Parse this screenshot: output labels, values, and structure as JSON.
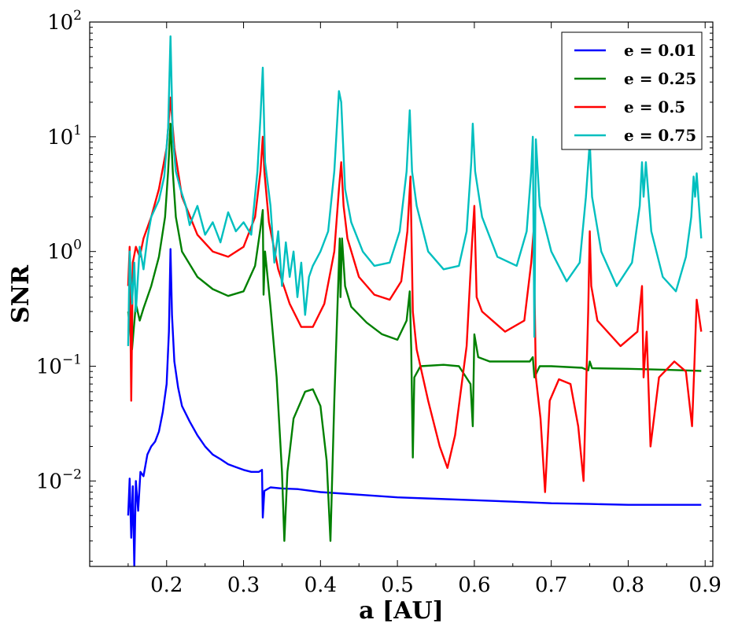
{
  "chart_data": {
    "type": "line",
    "title": "",
    "xlabel": "a [AU]",
    "ylabel": "SNR",
    "xscale": "linear",
    "yscale": "log",
    "xlim": [
      0.1,
      0.91
    ],
    "ylim": [
      0.0018,
      100
    ],
    "x_ticks": [
      {
        "value": 0.2,
        "label": "0.2"
      },
      {
        "value": 0.3,
        "label": "0.3"
      },
      {
        "value": 0.4,
        "label": "0.4"
      },
      {
        "value": 0.5,
        "label": "0.5"
      },
      {
        "value": 0.6,
        "label": "0.6"
      },
      {
        "value": 0.7,
        "label": "0.7"
      },
      {
        "value": 0.8,
        "label": "0.8"
      },
      {
        "value": 0.9,
        "label": "0.9"
      }
    ],
    "y_ticks": [
      {
        "value": 0.01,
        "base": "10",
        "exp": "−2"
      },
      {
        "value": 0.1,
        "base": "10",
        "exp": "−1"
      },
      {
        "value": 1,
        "base": "10",
        "exp": "0"
      },
      {
        "value": 10,
        "base": "10",
        "exp": "1"
      },
      {
        "value": 100,
        "base": "10",
        "exp": "2"
      }
    ],
    "legend_position": "top-right",
    "series": [
      {
        "name": "e = 0.01",
        "color": "#0000ff",
        "points": [
          [
            0.15,
            0.005
          ],
          [
            0.152,
            0.0105
          ],
          [
            0.154,
            0.0032
          ],
          [
            0.156,
            0.009
          ],
          [
            0.158,
            0.0018
          ],
          [
            0.16,
            0.01
          ],
          [
            0.163,
            0.0055
          ],
          [
            0.166,
            0.012
          ],
          [
            0.17,
            0.011
          ],
          [
            0.175,
            0.017
          ],
          [
            0.18,
            0.02
          ],
          [
            0.185,
            0.022
          ],
          [
            0.19,
            0.027
          ],
          [
            0.195,
            0.04
          ],
          [
            0.2,
            0.07
          ],
          [
            0.203,
            0.2
          ],
          [
            0.205,
            1.05
          ],
          [
            0.207,
            0.28
          ],
          [
            0.21,
            0.11
          ],
          [
            0.215,
            0.065
          ],
          [
            0.22,
            0.045
          ],
          [
            0.23,
            0.033
          ],
          [
            0.24,
            0.025
          ],
          [
            0.25,
            0.02
          ],
          [
            0.26,
            0.017
          ],
          [
            0.27,
            0.0155
          ],
          [
            0.28,
            0.014
          ],
          [
            0.29,
            0.0132
          ],
          [
            0.3,
            0.0125
          ],
          [
            0.31,
            0.012
          ],
          [
            0.32,
            0.012
          ],
          [
            0.324,
            0.0125
          ],
          [
            0.325,
            0.0048
          ],
          [
            0.327,
            0.0082
          ],
          [
            0.335,
            0.0088
          ],
          [
            0.35,
            0.0086
          ],
          [
            0.37,
            0.0085
          ],
          [
            0.4,
            0.008
          ],
          [
            0.45,
            0.0076
          ],
          [
            0.5,
            0.0072
          ],
          [
            0.55,
            0.007
          ],
          [
            0.6,
            0.0068
          ],
          [
            0.65,
            0.0066
          ],
          [
            0.7,
            0.0064
          ],
          [
            0.75,
            0.0063
          ],
          [
            0.8,
            0.0062
          ],
          [
            0.85,
            0.0062
          ],
          [
            0.895,
            0.0062
          ]
        ]
      },
      {
        "name": "e = 0.25",
        "color": "#008000",
        "points": [
          [
            0.15,
            0.3
          ],
          [
            0.155,
            0.14
          ],
          [
            0.16,
            0.35
          ],
          [
            0.165,
            0.25
          ],
          [
            0.17,
            0.32
          ],
          [
            0.18,
            0.5
          ],
          [
            0.19,
            0.9
          ],
          [
            0.198,
            2.0
          ],
          [
            0.202,
            5.0
          ],
          [
            0.205,
            13
          ],
          [
            0.208,
            5.0
          ],
          [
            0.212,
            2.0
          ],
          [
            0.22,
            1.0
          ],
          [
            0.24,
            0.6
          ],
          [
            0.26,
            0.47
          ],
          [
            0.28,
            0.41
          ],
          [
            0.3,
            0.45
          ],
          [
            0.315,
            0.75
          ],
          [
            0.322,
            1.6
          ],
          [
            0.325,
            2.3
          ],
          [
            0.326,
            0.42
          ],
          [
            0.328,
            1.0
          ],
          [
            0.335,
            0.33
          ],
          [
            0.343,
            0.08
          ],
          [
            0.35,
            0.012
          ],
          [
            0.353,
            0.003
          ],
          [
            0.357,
            0.012
          ],
          [
            0.365,
            0.035
          ],
          [
            0.38,
            0.06
          ],
          [
            0.39,
            0.063
          ],
          [
            0.4,
            0.045
          ],
          [
            0.408,
            0.015
          ],
          [
            0.413,
            0.003
          ],
          [
            0.418,
            0.05
          ],
          [
            0.423,
            0.5
          ],
          [
            0.425,
            1.3
          ],
          [
            0.426,
            0.4
          ],
          [
            0.428,
            1.3
          ],
          [
            0.432,
            0.5
          ],
          [
            0.44,
            0.33
          ],
          [
            0.46,
            0.24
          ],
          [
            0.48,
            0.19
          ],
          [
            0.5,
            0.17
          ],
          [
            0.512,
            0.25
          ],
          [
            0.516,
            0.45
          ],
          [
            0.518,
            0.14
          ],
          [
            0.52,
            0.016
          ],
          [
            0.522,
            0.08
          ],
          [
            0.53,
            0.1
          ],
          [
            0.56,
            0.103
          ],
          [
            0.58,
            0.1
          ],
          [
            0.595,
            0.07
          ],
          [
            0.598,
            0.03
          ],
          [
            0.6,
            0.19
          ],
          [
            0.605,
            0.12
          ],
          [
            0.62,
            0.11
          ],
          [
            0.65,
            0.11
          ],
          [
            0.672,
            0.11
          ],
          [
            0.676,
            0.12
          ],
          [
            0.678,
            0.08
          ],
          [
            0.685,
            0.1
          ],
          [
            0.7,
            0.1
          ],
          [
            0.74,
            0.097
          ],
          [
            0.748,
            0.092
          ],
          [
            0.75,
            0.11
          ],
          [
            0.753,
            0.096
          ],
          [
            0.8,
            0.095
          ],
          [
            0.85,
            0.093
          ],
          [
            0.895,
            0.091
          ]
        ]
      },
      {
        "name": "e = 0.5",
        "color": "#ff0000",
        "points": [
          [
            0.15,
            0.5
          ],
          [
            0.152,
            1.1
          ],
          [
            0.154,
            0.05
          ],
          [
            0.156,
            0.8
          ],
          [
            0.16,
            1.1
          ],
          [
            0.165,
            0.9
          ],
          [
            0.17,
            1.3
          ],
          [
            0.18,
            2.0
          ],
          [
            0.19,
            3.5
          ],
          [
            0.2,
            8.0
          ],
          [
            0.205,
            22
          ],
          [
            0.21,
            8.0
          ],
          [
            0.22,
            3.0
          ],
          [
            0.24,
            1.4
          ],
          [
            0.26,
            1.0
          ],
          [
            0.28,
            0.9
          ],
          [
            0.3,
            1.1
          ],
          [
            0.315,
            2.0
          ],
          [
            0.322,
            5.0
          ],
          [
            0.325,
            10
          ],
          [
            0.327,
            5.0
          ],
          [
            0.333,
            1.8
          ],
          [
            0.345,
            0.7
          ],
          [
            0.36,
            0.35
          ],
          [
            0.375,
            0.22
          ],
          [
            0.39,
            0.22
          ],
          [
            0.405,
            0.35
          ],
          [
            0.418,
            1.0
          ],
          [
            0.424,
            3.5
          ],
          [
            0.427,
            6.0
          ],
          [
            0.43,
            2.5
          ],
          [
            0.435,
            1.3
          ],
          [
            0.45,
            0.6
          ],
          [
            0.47,
            0.42
          ],
          [
            0.49,
            0.38
          ],
          [
            0.505,
            0.55
          ],
          [
            0.513,
            1.5
          ],
          [
            0.517,
            4.5
          ],
          [
            0.52,
            0.3
          ],
          [
            0.525,
            0.14
          ],
          [
            0.54,
            0.05
          ],
          [
            0.555,
            0.02
          ],
          [
            0.565,
            0.013
          ],
          [
            0.575,
            0.025
          ],
          [
            0.59,
            0.15
          ],
          [
            0.597,
            1.2
          ],
          [
            0.6,
            2.5
          ],
          [
            0.603,
            0.4
          ],
          [
            0.61,
            0.3
          ],
          [
            0.64,
            0.2
          ],
          [
            0.665,
            0.25
          ],
          [
            0.674,
            0.8
          ],
          [
            0.677,
            1.5
          ],
          [
            0.68,
            0.08
          ],
          [
            0.686,
            0.035
          ],
          [
            0.692,
            0.008
          ],
          [
            0.698,
            0.05
          ],
          [
            0.71,
            0.077
          ],
          [
            0.725,
            0.07
          ],
          [
            0.735,
            0.03
          ],
          [
            0.742,
            0.01
          ],
          [
            0.748,
            0.3
          ],
          [
            0.75,
            1.5
          ],
          [
            0.752,
            0.5
          ],
          [
            0.76,
            0.25
          ],
          [
            0.79,
            0.15
          ],
          [
            0.812,
            0.2
          ],
          [
            0.818,
            0.5
          ],
          [
            0.82,
            0.08
          ],
          [
            0.824,
            0.2
          ],
          [
            0.829,
            0.02
          ],
          [
            0.84,
            0.08
          ],
          [
            0.86,
            0.11
          ],
          [
            0.875,
            0.09
          ],
          [
            0.883,
            0.03
          ],
          [
            0.886,
            0.1
          ],
          [
            0.889,
            0.38
          ],
          [
            0.895,
            0.2
          ]
        ]
      },
      {
        "name": "e = 0.75",
        "color": "#00bfbf",
        "points": [
          [
            0.15,
            0.15
          ],
          [
            0.152,
            1.0
          ],
          [
            0.155,
            0.35
          ],
          [
            0.158,
            0.8
          ],
          [
            0.16,
            0.3
          ],
          [
            0.165,
            1.1
          ],
          [
            0.17,
            0.7
          ],
          [
            0.175,
            1.3
          ],
          [
            0.18,
            2.0
          ],
          [
            0.19,
            2.8
          ],
          [
            0.197,
            4.5
          ],
          [
            0.202,
            12
          ],
          [
            0.205,
            75
          ],
          [
            0.208,
            10
          ],
          [
            0.212,
            5.0
          ],
          [
            0.218,
            3.5
          ],
          [
            0.225,
            2.5
          ],
          [
            0.23,
            1.7
          ],
          [
            0.24,
            2.5
          ],
          [
            0.25,
            1.4
          ],
          [
            0.26,
            1.8
          ],
          [
            0.27,
            1.2
          ],
          [
            0.28,
            2.2
          ],
          [
            0.29,
            1.5
          ],
          [
            0.3,
            1.8
          ],
          [
            0.31,
            1.4
          ],
          [
            0.318,
            5.0
          ],
          [
            0.322,
            15
          ],
          [
            0.325,
            40
          ],
          [
            0.328,
            6.0
          ],
          [
            0.335,
            2.5
          ],
          [
            0.34,
            0.8
          ],
          [
            0.345,
            1.5
          ],
          [
            0.35,
            0.5
          ],
          [
            0.355,
            1.2
          ],
          [
            0.36,
            0.6
          ],
          [
            0.365,
            1.0
          ],
          [
            0.37,
            0.4
          ],
          [
            0.375,
            0.8
          ],
          [
            0.38,
            0.28
          ],
          [
            0.385,
            0.6
          ],
          [
            0.39,
            0.75
          ],
          [
            0.4,
            1.0
          ],
          [
            0.41,
            1.5
          ],
          [
            0.418,
            5.0
          ],
          [
            0.424,
            25
          ],
          [
            0.427,
            20
          ],
          [
            0.432,
            3.5
          ],
          [
            0.44,
            1.8
          ],
          [
            0.455,
            1.0
          ],
          [
            0.47,
            0.75
          ],
          [
            0.49,
            0.8
          ],
          [
            0.503,
            1.5
          ],
          [
            0.512,
            5.0
          ],
          [
            0.516,
            17
          ],
          [
            0.519,
            5.0
          ],
          [
            0.525,
            2.5
          ],
          [
            0.54,
            1.0
          ],
          [
            0.56,
            0.7
          ],
          [
            0.58,
            0.75
          ],
          [
            0.59,
            1.5
          ],
          [
            0.596,
            6.0
          ],
          [
            0.598,
            13
          ],
          [
            0.601,
            5.0
          ],
          [
            0.61,
            2.0
          ],
          [
            0.63,
            0.9
          ],
          [
            0.655,
            0.75
          ],
          [
            0.668,
            1.5
          ],
          [
            0.674,
            5.0
          ],
          [
            0.676,
            10
          ],
          [
            0.678,
            0.18
          ],
          [
            0.68,
            9.5
          ],
          [
            0.685,
            2.5
          ],
          [
            0.7,
            1.0
          ],
          [
            0.72,
            0.55
          ],
          [
            0.737,
            0.8
          ],
          [
            0.745,
            3.0
          ],
          [
            0.75,
            9.0
          ],
          [
            0.753,
            3.0
          ],
          [
            0.765,
            1.0
          ],
          [
            0.785,
            0.5
          ],
          [
            0.805,
            0.8
          ],
          [
            0.815,
            2.5
          ],
          [
            0.818,
            6.0
          ],
          [
            0.82,
            3.0
          ],
          [
            0.823,
            6.0
          ],
          [
            0.83,
            1.5
          ],
          [
            0.845,
            0.6
          ],
          [
            0.862,
            0.45
          ],
          [
            0.875,
            0.9
          ],
          [
            0.882,
            2.0
          ],
          [
            0.885,
            4.5
          ],
          [
            0.887,
            3.0
          ],
          [
            0.889,
            4.8
          ],
          [
            0.892,
            2.5
          ],
          [
            0.895,
            1.3
          ]
        ]
      }
    ]
  }
}
